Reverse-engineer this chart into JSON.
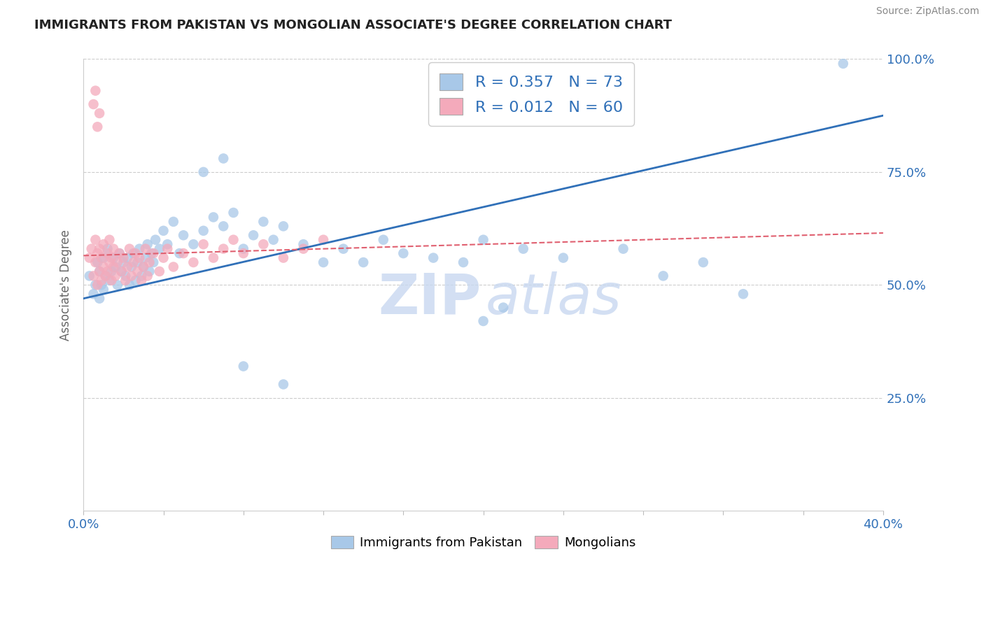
{
  "title": "IMMIGRANTS FROM PAKISTAN VS MONGOLIAN ASSOCIATE'S DEGREE CORRELATION CHART",
  "source": "Source: ZipAtlas.com",
  "ylabel": "Associate's Degree",
  "xlim": [
    0.0,
    0.4
  ],
  "ylim": [
    0.0,
    1.0
  ],
  "blue_R": 0.357,
  "blue_N": 73,
  "pink_R": 0.012,
  "pink_N": 60,
  "blue_color": "#a8c8e8",
  "pink_color": "#f4aabb",
  "blue_line_color": "#3070b8",
  "pink_line_color": "#e06070",
  "legend_label_blue": "Immigrants from Pakistan",
  "legend_label_pink": "Mongolians",
  "background_color": "#ffffff",
  "grid_color": "#cccccc",
  "title_color": "#222222",
  "axis_label_color": "#666666",
  "tick_color": "#3070b8",
  "blue_trend": [
    0.47,
    0.875
  ],
  "pink_trend": [
    0.565,
    0.615
  ],
  "blue_x": [
    0.003,
    0.005,
    0.006,
    0.007,
    0.008,
    0.008,
    0.009,
    0.01,
    0.01,
    0.011,
    0.012,
    0.013,
    0.014,
    0.015,
    0.016,
    0.017,
    0.018,
    0.019,
    0.02,
    0.021,
    0.022,
    0.023,
    0.024,
    0.025,
    0.026,
    0.027,
    0.028,
    0.029,
    0.03,
    0.031,
    0.032,
    0.033,
    0.034,
    0.035,
    0.036,
    0.038,
    0.04,
    0.042,
    0.045,
    0.048,
    0.05,
    0.055,
    0.06,
    0.065,
    0.07,
    0.075,
    0.08,
    0.085,
    0.09,
    0.095,
    0.1,
    0.11,
    0.12,
    0.13,
    0.14,
    0.15,
    0.16,
    0.175,
    0.19,
    0.2,
    0.22,
    0.24,
    0.27,
    0.29,
    0.31,
    0.33,
    0.06,
    0.07,
    0.08,
    0.2,
    0.21,
    0.38,
    0.1
  ],
  "blue_y": [
    0.52,
    0.48,
    0.5,
    0.55,
    0.53,
    0.47,
    0.5,
    0.56,
    0.49,
    0.52,
    0.58,
    0.51,
    0.53,
    0.56,
    0.54,
    0.5,
    0.57,
    0.53,
    0.55,
    0.52,
    0.56,
    0.5,
    0.54,
    0.57,
    0.51,
    0.55,
    0.58,
    0.52,
    0.54,
    0.56,
    0.59,
    0.53,
    0.57,
    0.55,
    0.6,
    0.58,
    0.62,
    0.59,
    0.64,
    0.57,
    0.61,
    0.59,
    0.62,
    0.65,
    0.63,
    0.66,
    0.58,
    0.61,
    0.64,
    0.6,
    0.63,
    0.59,
    0.55,
    0.58,
    0.55,
    0.6,
    0.57,
    0.56,
    0.55,
    0.6,
    0.58,
    0.56,
    0.58,
    0.52,
    0.55,
    0.48,
    0.75,
    0.78,
    0.32,
    0.42,
    0.45,
    0.99,
    0.28
  ],
  "pink_x": [
    0.003,
    0.004,
    0.005,
    0.006,
    0.006,
    0.007,
    0.007,
    0.008,
    0.008,
    0.009,
    0.009,
    0.01,
    0.01,
    0.011,
    0.012,
    0.012,
    0.013,
    0.013,
    0.014,
    0.014,
    0.015,
    0.015,
    0.016,
    0.017,
    0.018,
    0.019,
    0.02,
    0.021,
    0.022,
    0.023,
    0.024,
    0.025,
    0.026,
    0.027,
    0.028,
    0.029,
    0.03,
    0.031,
    0.032,
    0.033,
    0.035,
    0.038,
    0.04,
    0.042,
    0.045,
    0.05,
    0.055,
    0.06,
    0.065,
    0.07,
    0.075,
    0.08,
    0.09,
    0.1,
    0.11,
    0.12,
    0.005,
    0.006,
    0.007,
    0.008
  ],
  "pink_y": [
    0.56,
    0.58,
    0.52,
    0.6,
    0.55,
    0.57,
    0.5,
    0.53,
    0.58,
    0.56,
    0.51,
    0.54,
    0.59,
    0.52,
    0.57,
    0.53,
    0.55,
    0.6,
    0.51,
    0.56,
    0.54,
    0.58,
    0.52,
    0.55,
    0.57,
    0.53,
    0.56,
    0.51,
    0.54,
    0.58,
    0.52,
    0.55,
    0.57,
    0.53,
    0.56,
    0.51,
    0.54,
    0.58,
    0.52,
    0.55,
    0.57,
    0.53,
    0.56,
    0.58,
    0.54,
    0.57,
    0.55,
    0.59,
    0.56,
    0.58,
    0.6,
    0.57,
    0.59,
    0.56,
    0.58,
    0.6,
    0.9,
    0.93,
    0.85,
    0.88
  ]
}
